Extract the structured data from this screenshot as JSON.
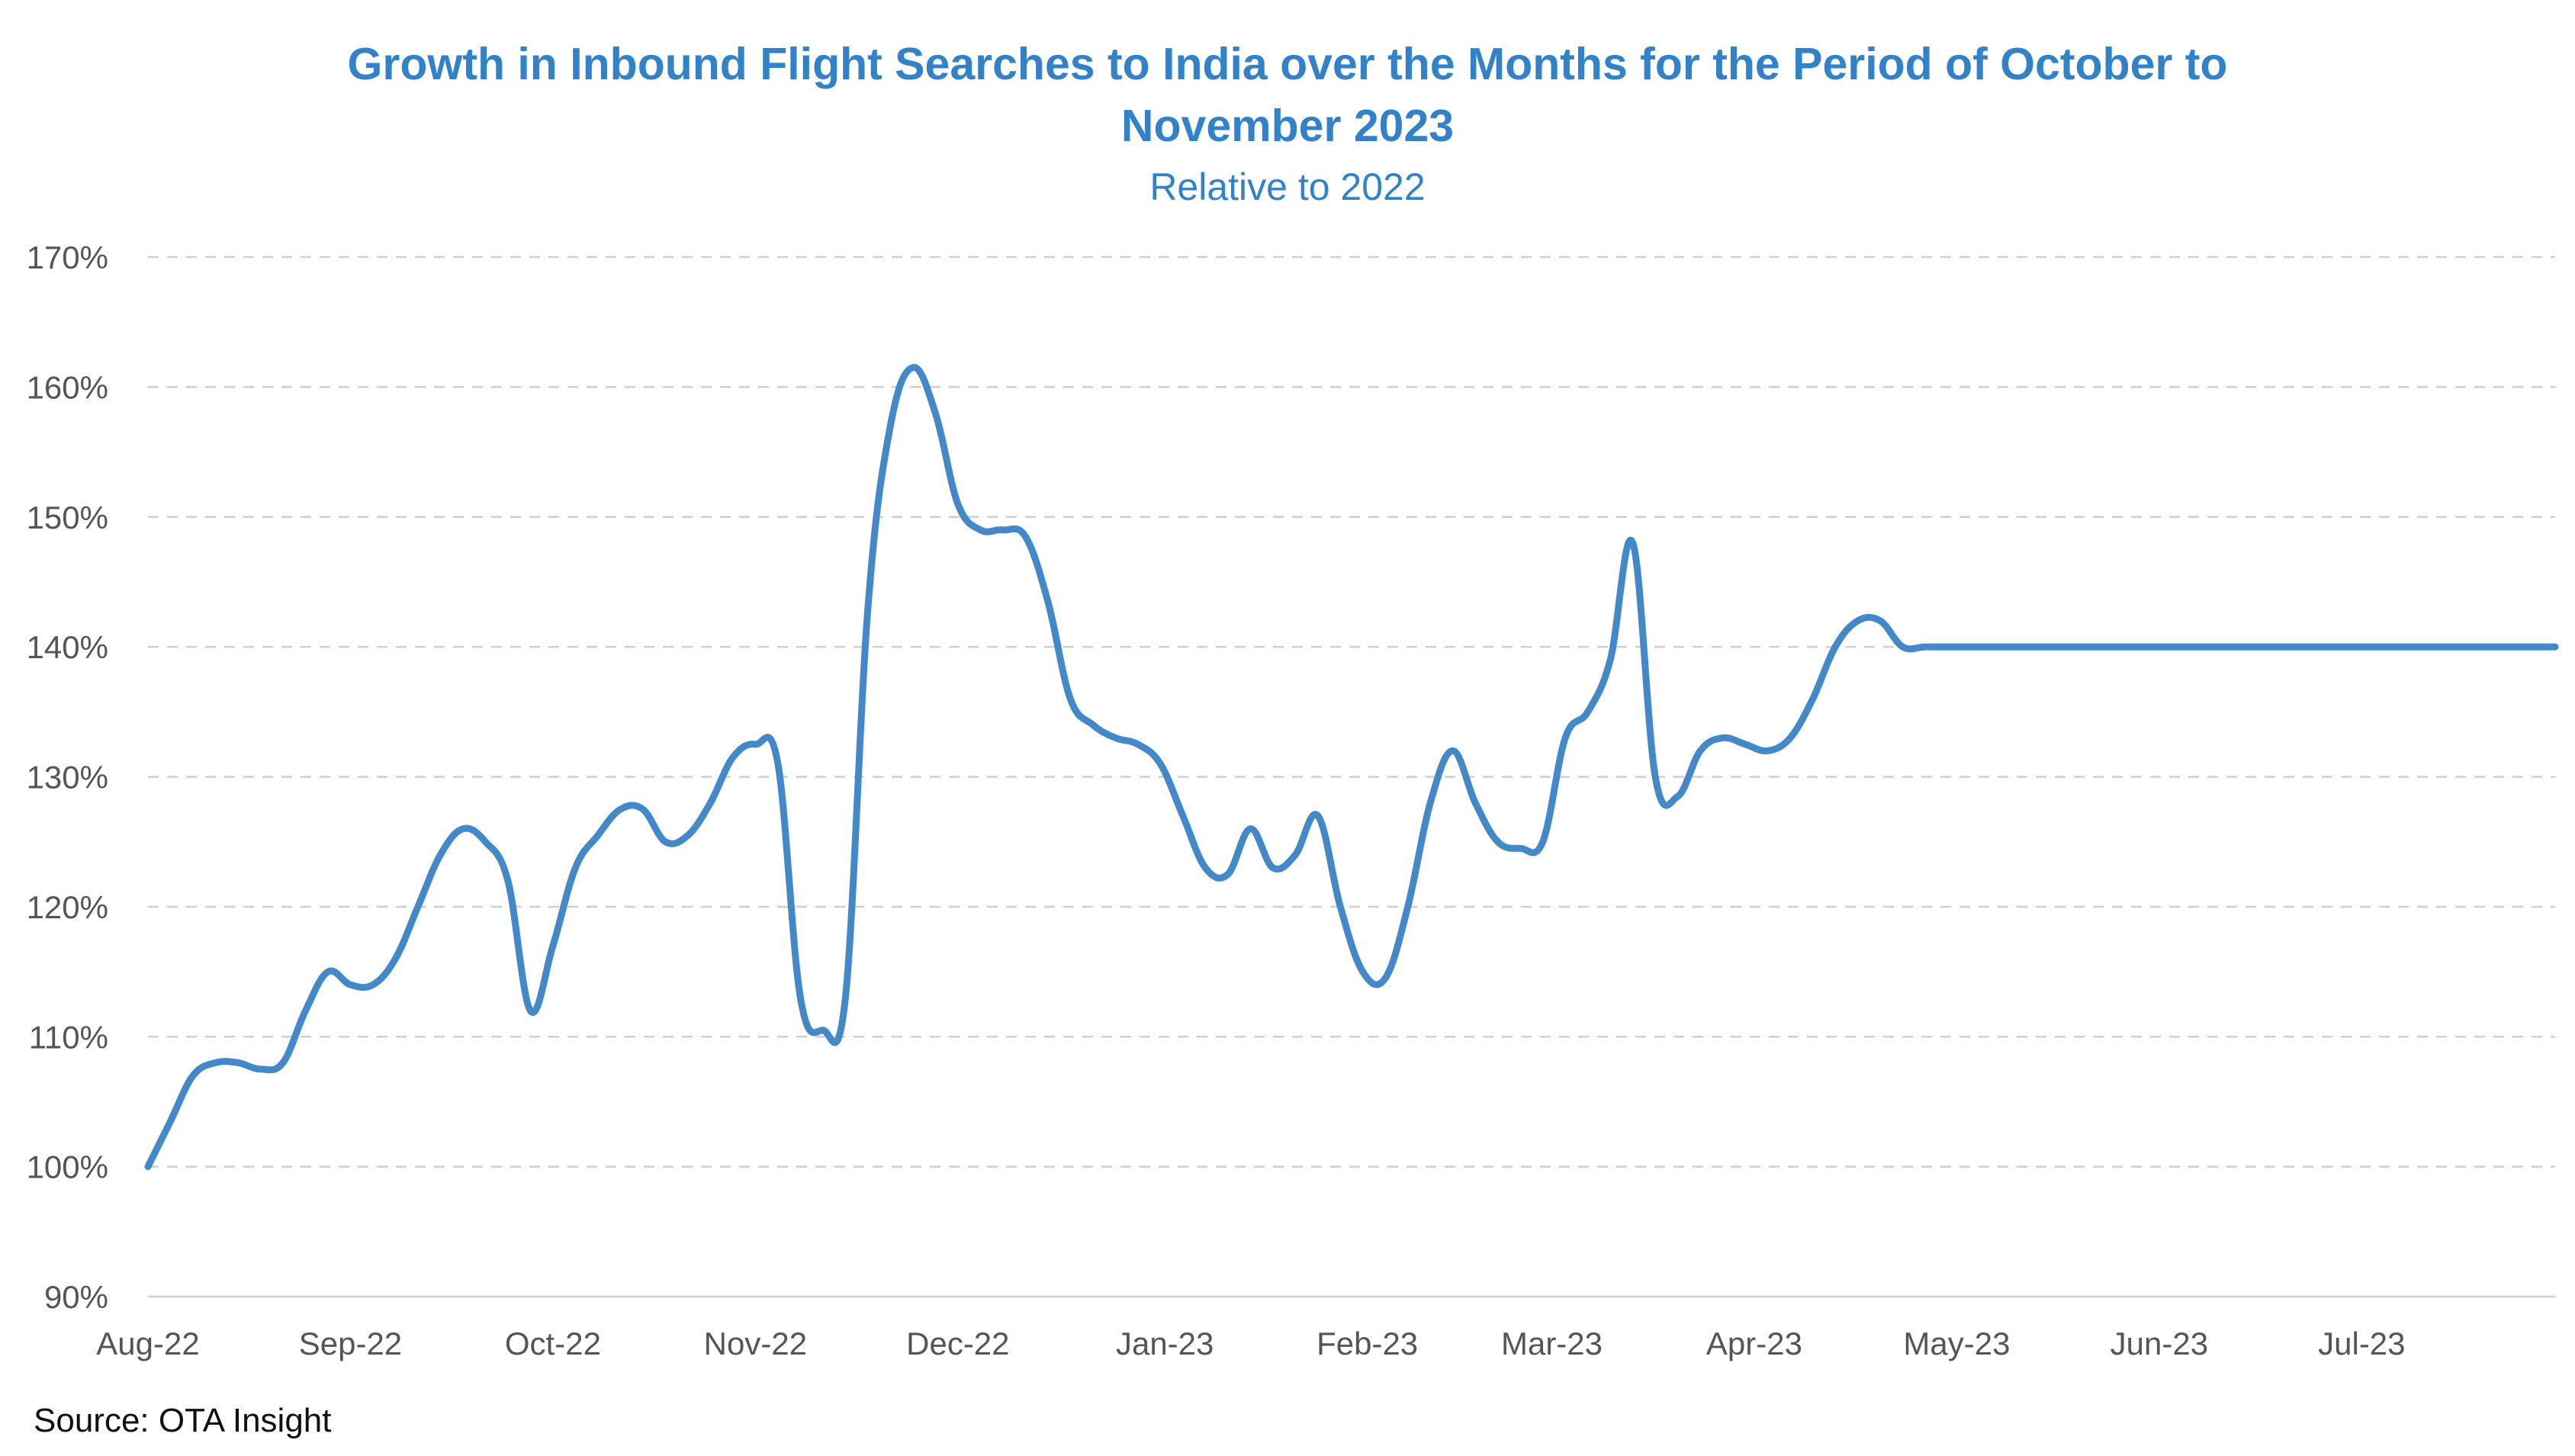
{
  "colors": {
    "title": "#3182c8",
    "series": "#4388c8",
    "tick": "#555555",
    "grid": "#cfcfcf",
    "source": "#111111"
  },
  "chart_data": {
    "type": "line",
    "title_line1": "Growth in Inbound Flight Searches to India over the Months for the Period of October to",
    "title_line2": "November 2023",
    "subtitle": "Relative to 2022",
    "xlabel": "",
    "ylabel": "",
    "ylim": [
      90,
      170
    ],
    "y_ticks": [
      90,
      100,
      110,
      120,
      130,
      140,
      150,
      160,
      170
    ],
    "y_tick_labels": [
      "90%",
      "100%",
      "110%",
      "120%",
      "130%",
      "140%",
      "150%",
      "160%",
      "170%"
    ],
    "x_tick_labels": [
      "Aug-22",
      "Sep-22",
      "Oct-22",
      "Nov-22",
      "Dec-22",
      "Jan-23",
      "Feb-23",
      "Mar-23",
      "Apr-23",
      "May-23",
      "Jun-23",
      "Jul-23"
    ],
    "x_tick_positions": [
      0,
      4.5,
      9,
      13.5,
      18,
      22.6,
      27.1,
      31.2,
      35.7,
      40.2,
      44.7,
      49.2
    ],
    "xlim": [
      0,
      53.5
    ],
    "grid": true,
    "legend": "none",
    "series": [
      {
        "x": [
          0,
          0.5,
          1,
          1.5,
          2,
          2.5,
          3,
          3.5,
          4,
          4.5,
          5,
          5.5,
          6,
          6.5,
          7,
          7.5,
          8,
          8.5,
          9,
          9.5,
          10,
          10.5,
          11,
          11.5,
          12,
          12.5,
          13,
          13.5,
          14,
          14.5,
          15,
          15.5,
          16,
          16.5,
          17,
          17.5,
          18,
          18.5,
          19,
          19.5,
          20,
          20.5,
          21,
          21.5,
          22,
          22.5,
          23,
          23.5,
          24,
          24.5,
          25,
          25.5,
          26,
          26.5,
          27,
          27.5,
          28,
          28.5,
          29,
          29.5,
          30,
          30.5,
          31,
          31.5,
          32,
          32.5,
          33,
          33.5,
          34,
          34.5,
          35,
          35.5,
          36,
          36.5,
          37,
          37.5,
          38,
          38.5,
          39,
          39.5,
          40,
          40.5,
          41,
          41.5,
          42,
          42.5,
          43,
          43.5,
          44,
          44.5,
          45,
          45.5,
          46,
          46.5,
          47,
          47.5,
          48,
          48.5,
          49,
          49.5,
          50,
          50.5,
          51,
          51.5,
          52,
          52.5,
          53,
          53.5
        ],
        "values": [
          100,
          103.5,
          107,
          108,
          108,
          107.5,
          108,
          112,
          115,
          114,
          114,
          116,
          120,
          124,
          126,
          125,
          122,
          112,
          117,
          123,
          125.5,
          127.5,
          127.5,
          125,
          125.5,
          128,
          131.5,
          132.5,
          131,
          113,
          110.5,
          113,
          143,
          157,
          161.5,
          158,
          151,
          149,
          149,
          148.5,
          143.5,
          136,
          134,
          133,
          132.5,
          131,
          127,
          123,
          122.5,
          126,
          123,
          124,
          127,
          120,
          115,
          114.5,
          120,
          128,
          132,
          128,
          125,
          124.5,
          125,
          133,
          135,
          139,
          148,
          130,
          128.5,
          132,
          133,
          132.5,
          132,
          133,
          136,
          140,
          142,
          142,
          140,
          140,
          140,
          140,
          140,
          140,
          140,
          140,
          140,
          140,
          140,
          140,
          140,
          140,
          140,
          140,
          140,
          140,
          140,
          140,
          140,
          140,
          140,
          140,
          140,
          140,
          140,
          140,
          140,
          140
        ]
      }
    ]
  },
  "source": "Source: OTA Insight"
}
